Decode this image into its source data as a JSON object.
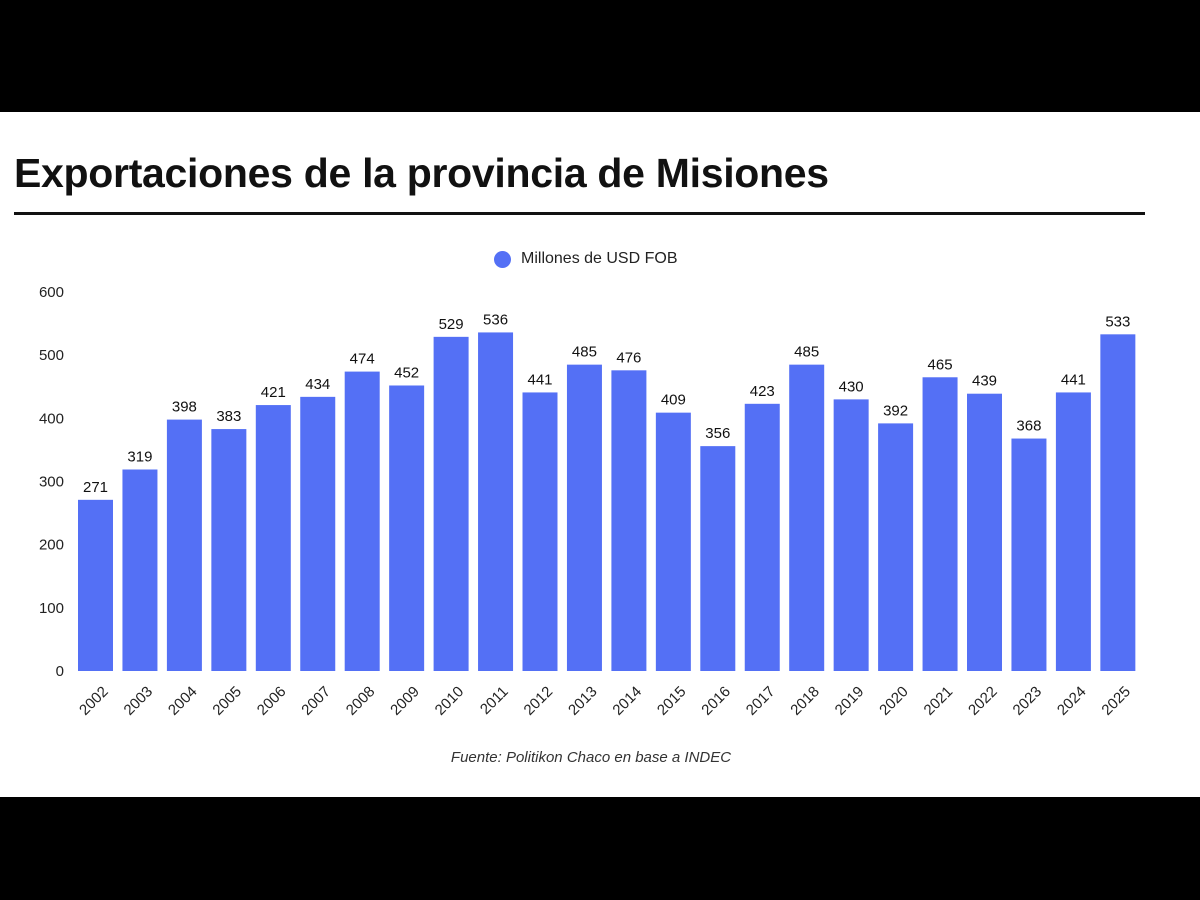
{
  "header": {
    "title": "Exportaciones de la provincia de Misiones"
  },
  "footer": {
    "source": "Fuente: Politikon Chaco en base a INDEC"
  },
  "colors": {
    "bar": "#5470f5",
    "background": "#ffffff",
    "frame": "#000000",
    "text": "#111111"
  },
  "chart_data": {
    "type": "bar",
    "title": "Exportaciones de la provincia de Misiones",
    "xlabel": "",
    "ylabel": "",
    "categories": [
      "2002",
      "2003",
      "2004",
      "2005",
      "2006",
      "2007",
      "2008",
      "2009",
      "2010",
      "2011",
      "2012",
      "2013",
      "2014",
      "2015",
      "2016",
      "2017",
      "2018",
      "2019",
      "2020",
      "2021",
      "2022",
      "2023",
      "2024",
      "2025"
    ],
    "series": [
      {
        "name": "Millones de USD FOB",
        "values": [
          271,
          319,
          398,
          383,
          421,
          434,
          474,
          452,
          529,
          536,
          441,
          485,
          476,
          409,
          356,
          423,
          485,
          430,
          392,
          465,
          439,
          368,
          441,
          533
        ]
      }
    ],
    "ylim": [
      0,
      600
    ],
    "yticks": [
      0,
      100,
      200,
      300,
      400,
      500,
      600
    ],
    "grid": false,
    "legend": "top-center",
    "data_labels": true,
    "x_tick_rotation": -45
  }
}
